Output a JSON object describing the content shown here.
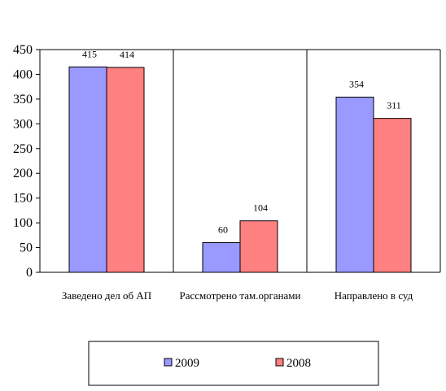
{
  "chart_data": {
    "type": "bar",
    "categories": [
      "Заведено дел об АП",
      "Рассмотрено там.органами",
      "Направлено в суд"
    ],
    "series": [
      {
        "name": "2009",
        "values": [
          415,
          60,
          354
        ],
        "color": "#9999ff"
      },
      {
        "name": "2008",
        "values": [
          414,
          104,
          311
        ],
        "color": "#ff8080"
      }
    ],
    "data_labels": [
      [
        "415",
        "60",
        "354"
      ],
      [
        "414",
        "104",
        "311"
      ]
    ],
    "ylim": [
      0,
      450
    ],
    "yticks": [
      "0",
      "50",
      "100",
      "150",
      "200",
      "250",
      "300",
      "350",
      "400",
      "450"
    ],
    "grid": false,
    "category_dividers": true,
    "legend_position": "bottom"
  }
}
